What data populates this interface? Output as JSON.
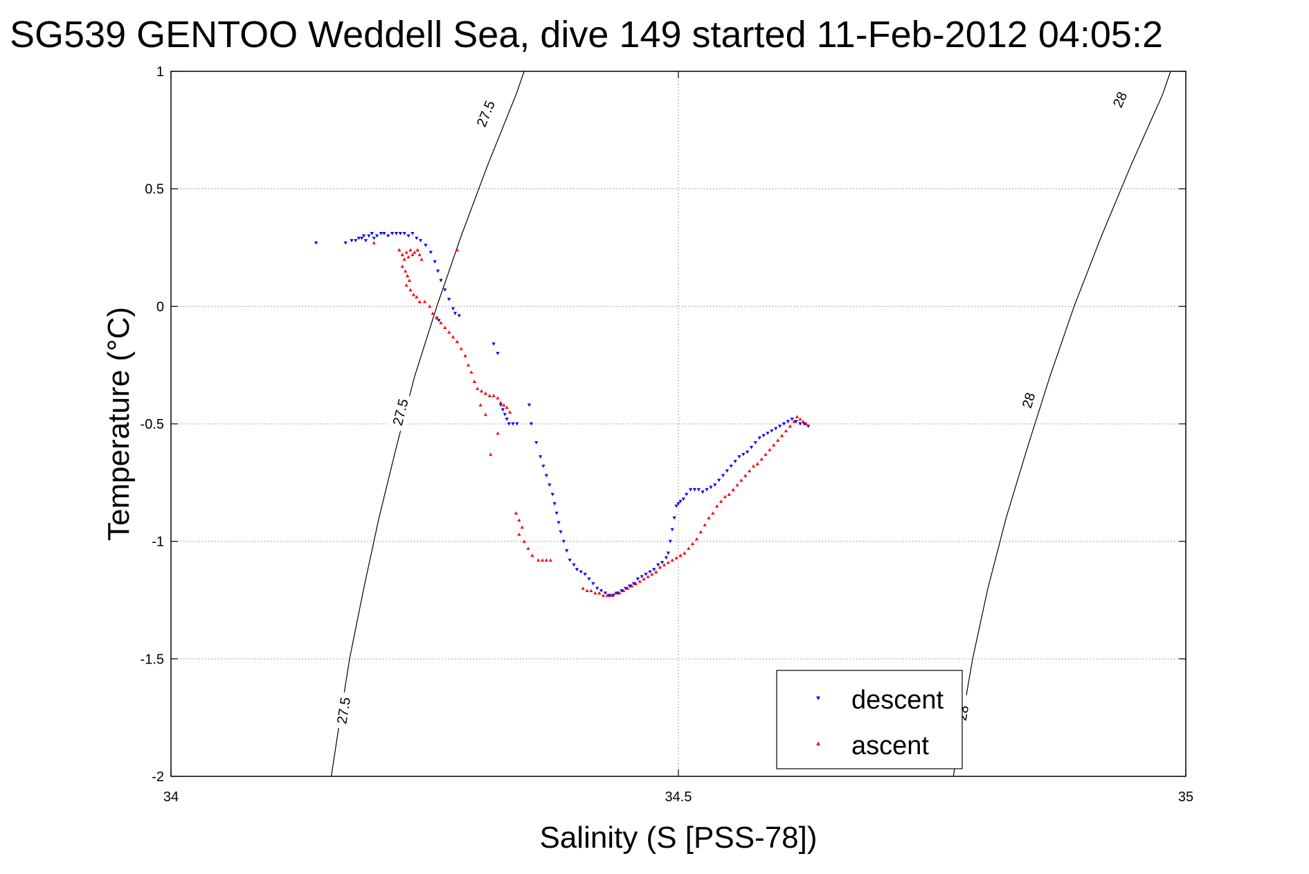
{
  "chart_data": {
    "type": "scatter",
    "title": "SG539 GENTOO Weddell Sea, dive 149 started 11-Feb-2012 04:05:2",
    "xlabel": "Salinity (S [PSS-78])",
    "ylabel": "Temperature (°C)",
    "xlim": [
      34,
      35
    ],
    "ylim": [
      -2,
      1
    ],
    "x_ticks": [
      34,
      34.5,
      35
    ],
    "x_tick_labels": [
      "34",
      "34.5",
      "35"
    ],
    "y_ticks": [
      1,
      0.5,
      0,
      -0.5,
      -1,
      -1.5,
      -2
    ],
    "y_tick_labels": [
      "1",
      "0.5",
      "0",
      "-0.5",
      "-1",
      "-1.5",
      "-2"
    ],
    "grid": true,
    "legend_position": "bottom-right",
    "isopycnals": [
      {
        "label": "27.5",
        "points": [
          [
            34.158,
            -2.0
          ],
          [
            34.165,
            -1.8
          ],
          [
            34.176,
            -1.5
          ],
          [
            34.19,
            -1.2
          ],
          [
            34.205,
            -0.9
          ],
          [
            34.222,
            -0.6
          ],
          [
            34.24,
            -0.3
          ],
          [
            34.262,
            0.0
          ],
          [
            34.286,
            0.3
          ],
          [
            34.312,
            0.6
          ],
          [
            34.34,
            0.9
          ],
          [
            34.348,
            1.0
          ]
        ],
        "label_positions": [
          [
            34.17,
            -1.72
          ],
          [
            34.226,
            -0.45
          ],
          [
            34.31,
            0.82
          ]
        ]
      },
      {
        "label": "28",
        "points": [
          [
            34.771,
            -2.0
          ],
          [
            34.778,
            -1.8
          ],
          [
            34.79,
            -1.5
          ],
          [
            34.805,
            -1.2
          ],
          [
            34.823,
            -0.9
          ],
          [
            34.844,
            -0.6
          ],
          [
            34.866,
            -0.3
          ],
          [
            34.89,
            0.0
          ],
          [
            34.917,
            0.3
          ],
          [
            34.946,
            0.6
          ],
          [
            34.977,
            0.9
          ],
          [
            34.985,
            1.0
          ]
        ],
        "label_positions": [
          [
            34.78,
            -1.73
          ],
          [
            34.845,
            -0.4
          ],
          [
            34.935,
            0.88
          ]
        ]
      }
    ],
    "series": [
      {
        "name": "descent",
        "color": "#0000ff",
        "marker": "triangle-down",
        "points": [
          [
            34.143,
            0.27
          ],
          [
            34.172,
            0.27
          ],
          [
            34.178,
            0.28
          ],
          [
            34.182,
            0.28
          ],
          [
            34.185,
            0.29
          ],
          [
            34.188,
            0.29
          ],
          [
            34.19,
            0.3
          ],
          [
            34.192,
            0.28
          ],
          [
            34.195,
            0.3
          ],
          [
            34.198,
            0.31
          ],
          [
            34.2,
            0.29
          ],
          [
            34.203,
            0.3
          ],
          [
            34.207,
            0.31
          ],
          [
            34.21,
            0.31
          ],
          [
            34.214,
            0.3
          ],
          [
            34.218,
            0.31
          ],
          [
            34.222,
            0.31
          ],
          [
            34.226,
            0.31
          ],
          [
            34.23,
            0.31
          ],
          [
            34.234,
            0.3
          ],
          [
            34.238,
            0.31
          ],
          [
            34.242,
            0.29
          ],
          [
            34.246,
            0.28
          ],
          [
            34.251,
            0.26
          ],
          [
            34.256,
            0.23
          ],
          [
            34.26,
            0.19
          ],
          [
            34.263,
            0.15
          ],
          [
            34.266,
            0.11
          ],
          [
            34.27,
            0.07
          ],
          [
            34.274,
            0.03
          ],
          [
            34.278,
            -0.01
          ],
          [
            34.28,
            -0.03
          ],
          [
            34.284,
            -0.04
          ],
          [
            34.262,
            -0.05
          ],
          [
            34.264,
            -0.06
          ],
          [
            34.318,
            -0.16
          ],
          [
            34.322,
            -0.2
          ],
          [
            34.325,
            -0.42
          ],
          [
            34.327,
            -0.44
          ],
          [
            34.329,
            -0.46
          ],
          [
            34.331,
            -0.48
          ],
          [
            34.333,
            -0.5
          ],
          [
            34.337,
            -0.5
          ],
          [
            34.341,
            -0.5
          ],
          [
            34.353,
            -0.42
          ],
          [
            34.355,
            -0.5
          ],
          [
            34.36,
            -0.58
          ],
          [
            34.364,
            -0.64
          ],
          [
            34.367,
            -0.68
          ],
          [
            34.37,
            -0.72
          ],
          [
            34.373,
            -0.76
          ],
          [
            34.376,
            -0.8
          ],
          [
            34.378,
            -0.84
          ],
          [
            34.38,
            -0.88
          ],
          [
            34.382,
            -0.92
          ],
          [
            34.384,
            -0.96
          ],
          [
            34.387,
            -1.0
          ],
          [
            34.39,
            -1.04
          ],
          [
            34.393,
            -1.08
          ],
          [
            34.397,
            -1.1
          ],
          [
            34.4,
            -1.12
          ],
          [
            34.404,
            -1.13
          ],
          [
            34.408,
            -1.14
          ],
          [
            34.412,
            -1.16
          ],
          [
            34.416,
            -1.18
          ],
          [
            34.42,
            -1.2
          ],
          [
            34.424,
            -1.21
          ],
          [
            34.428,
            -1.22
          ],
          [
            34.432,
            -1.23
          ],
          [
            34.436,
            -1.23
          ],
          [
            34.44,
            -1.22
          ],
          [
            34.444,
            -1.21
          ],
          [
            34.448,
            -1.2
          ],
          [
            34.452,
            -1.19
          ],
          [
            34.456,
            -1.18
          ],
          [
            34.46,
            -1.16
          ],
          [
            34.464,
            -1.15
          ],
          [
            34.468,
            -1.14
          ],
          [
            34.472,
            -1.13
          ],
          [
            34.476,
            -1.12
          ],
          [
            34.48,
            -1.1
          ],
          [
            34.484,
            -1.09
          ],
          [
            34.488,
            -1.07
          ],
          [
            34.49,
            -1.05
          ],
          [
            34.492,
            -1.0
          ],
          [
            34.494,
            -0.95
          ],
          [
            34.496,
            -0.9
          ],
          [
            34.498,
            -0.85
          ],
          [
            34.5,
            -0.84
          ],
          [
            34.502,
            -0.83
          ],
          [
            34.505,
            -0.82
          ],
          [
            34.508,
            -0.8
          ],
          [
            34.512,
            -0.78
          ],
          [
            34.516,
            -0.78
          ],
          [
            34.52,
            -0.78
          ],
          [
            34.524,
            -0.79
          ],
          [
            34.528,
            -0.78
          ],
          [
            34.532,
            -0.77
          ],
          [
            34.536,
            -0.76
          ],
          [
            34.54,
            -0.74
          ],
          [
            34.544,
            -0.72
          ],
          [
            34.548,
            -0.7
          ],
          [
            34.552,
            -0.68
          ],
          [
            34.556,
            -0.66
          ],
          [
            34.56,
            -0.64
          ],
          [
            34.564,
            -0.63
          ],
          [
            34.568,
            -0.62
          ],
          [
            34.572,
            -0.6
          ],
          [
            34.576,
            -0.58
          ],
          [
            34.58,
            -0.56
          ],
          [
            34.584,
            -0.55
          ],
          [
            34.588,
            -0.54
          ],
          [
            34.592,
            -0.53
          ],
          [
            34.596,
            -0.52
          ],
          [
            34.6,
            -0.51
          ],
          [
            34.604,
            -0.5
          ],
          [
            34.608,
            -0.49
          ],
          [
            34.612,
            -0.48
          ],
          [
            34.616,
            -0.49
          ],
          [
            34.62,
            -0.5
          ],
          [
            34.624,
            -0.5
          ],
          [
            34.628,
            -0.51
          ]
        ]
      },
      {
        "name": "ascent",
        "color": "#ff0000",
        "marker": "triangle-up",
        "points": [
          [
            34.2,
            0.27
          ],
          [
            34.225,
            0.24
          ],
          [
            34.228,
            0.22
          ],
          [
            34.23,
            0.2
          ],
          [
            34.232,
            0.23
          ],
          [
            34.234,
            0.21
          ],
          [
            34.236,
            0.24
          ],
          [
            34.238,
            0.22
          ],
          [
            34.24,
            0.23
          ],
          [
            34.243,
            0.24
          ],
          [
            34.245,
            0.22
          ],
          [
            34.247,
            0.2
          ],
          [
            34.228,
            0.17
          ],
          [
            34.231,
            0.15
          ],
          [
            34.233,
            0.13
          ],
          [
            34.235,
            0.11
          ],
          [
            34.232,
            0.09
          ],
          [
            34.236,
            0.07
          ],
          [
            34.239,
            0.05
          ],
          [
            34.242,
            0.04
          ],
          [
            34.245,
            0.02
          ],
          [
            34.282,
            0.24
          ],
          [
            34.25,
            0.02
          ],
          [
            34.255,
            0.0
          ],
          [
            34.258,
            -0.03
          ],
          [
            34.262,
            -0.05
          ],
          [
            34.266,
            -0.07
          ],
          [
            34.27,
            -0.09
          ],
          [
            34.274,
            -0.11
          ],
          [
            34.278,
            -0.13
          ],
          [
            34.282,
            -0.15
          ],
          [
            34.286,
            -0.18
          ],
          [
            34.29,
            -0.21
          ],
          [
            34.293,
            -0.25
          ],
          [
            34.296,
            -0.28
          ],
          [
            34.299,
            -0.32
          ],
          [
            34.302,
            -0.35
          ],
          [
            34.306,
            -0.36
          ],
          [
            34.31,
            -0.37
          ],
          [
            34.314,
            -0.38
          ],
          [
            34.318,
            -0.38
          ],
          [
            34.322,
            -0.39
          ],
          [
            34.325,
            -0.41
          ],
          [
            34.328,
            -0.42
          ],
          [
            34.331,
            -0.43
          ],
          [
            34.334,
            -0.45
          ],
          [
            34.305,
            -0.42
          ],
          [
            34.31,
            -0.46
          ],
          [
            34.322,
            -0.54
          ],
          [
            34.315,
            -0.63
          ],
          [
            34.34,
            -0.88
          ],
          [
            34.343,
            -0.91
          ],
          [
            34.346,
            -0.94
          ],
          [
            34.343,
            -0.97
          ],
          [
            34.348,
            -1.0
          ],
          [
            34.352,
            -1.03
          ],
          [
            34.356,
            -1.06
          ],
          [
            34.362,
            -1.08
          ],
          [
            34.366,
            -1.08
          ],
          [
            34.37,
            -1.08
          ],
          [
            34.374,
            -1.08
          ],
          [
            34.406,
            -1.2
          ],
          [
            34.41,
            -1.21
          ],
          [
            34.414,
            -1.21
          ],
          [
            34.418,
            -1.22
          ],
          [
            34.422,
            -1.22
          ],
          [
            34.426,
            -1.23
          ],
          [
            34.43,
            -1.23
          ],
          [
            34.434,
            -1.23
          ],
          [
            34.438,
            -1.22
          ],
          [
            34.442,
            -1.22
          ],
          [
            34.446,
            -1.21
          ],
          [
            34.45,
            -1.2
          ],
          [
            34.454,
            -1.19
          ],
          [
            34.458,
            -1.18
          ],
          [
            34.462,
            -1.17
          ],
          [
            34.466,
            -1.16
          ],
          [
            34.47,
            -1.15
          ],
          [
            34.474,
            -1.14
          ],
          [
            34.478,
            -1.13
          ],
          [
            34.482,
            -1.11
          ],
          [
            34.486,
            -1.1
          ],
          [
            34.49,
            -1.09
          ],
          [
            34.494,
            -1.08
          ],
          [
            34.498,
            -1.07
          ],
          [
            34.502,
            -1.06
          ],
          [
            34.506,
            -1.05
          ],
          [
            34.51,
            -1.03
          ],
          [
            34.514,
            -1.01
          ],
          [
            34.518,
            -0.99
          ],
          [
            34.522,
            -0.96
          ],
          [
            34.526,
            -0.93
          ],
          [
            34.53,
            -0.9
          ],
          [
            34.534,
            -0.88
          ],
          [
            34.538,
            -0.85
          ],
          [
            34.542,
            -0.83
          ],
          [
            34.546,
            -0.81
          ],
          [
            34.55,
            -0.8
          ],
          [
            34.554,
            -0.78
          ],
          [
            34.558,
            -0.76
          ],
          [
            34.562,
            -0.74
          ],
          [
            34.566,
            -0.72
          ],
          [
            34.57,
            -0.7
          ],
          [
            34.574,
            -0.68
          ],
          [
            34.578,
            -0.67
          ],
          [
            34.582,
            -0.65
          ],
          [
            34.586,
            -0.63
          ],
          [
            34.59,
            -0.61
          ],
          [
            34.594,
            -0.59
          ],
          [
            34.598,
            -0.57
          ],
          [
            34.602,
            -0.55
          ],
          [
            34.606,
            -0.53
          ],
          [
            34.61,
            -0.51
          ],
          [
            34.614,
            -0.49
          ],
          [
            34.617,
            -0.47
          ],
          [
            34.62,
            -0.48
          ],
          [
            34.623,
            -0.49
          ],
          [
            34.626,
            -0.5
          ]
        ]
      }
    ]
  }
}
